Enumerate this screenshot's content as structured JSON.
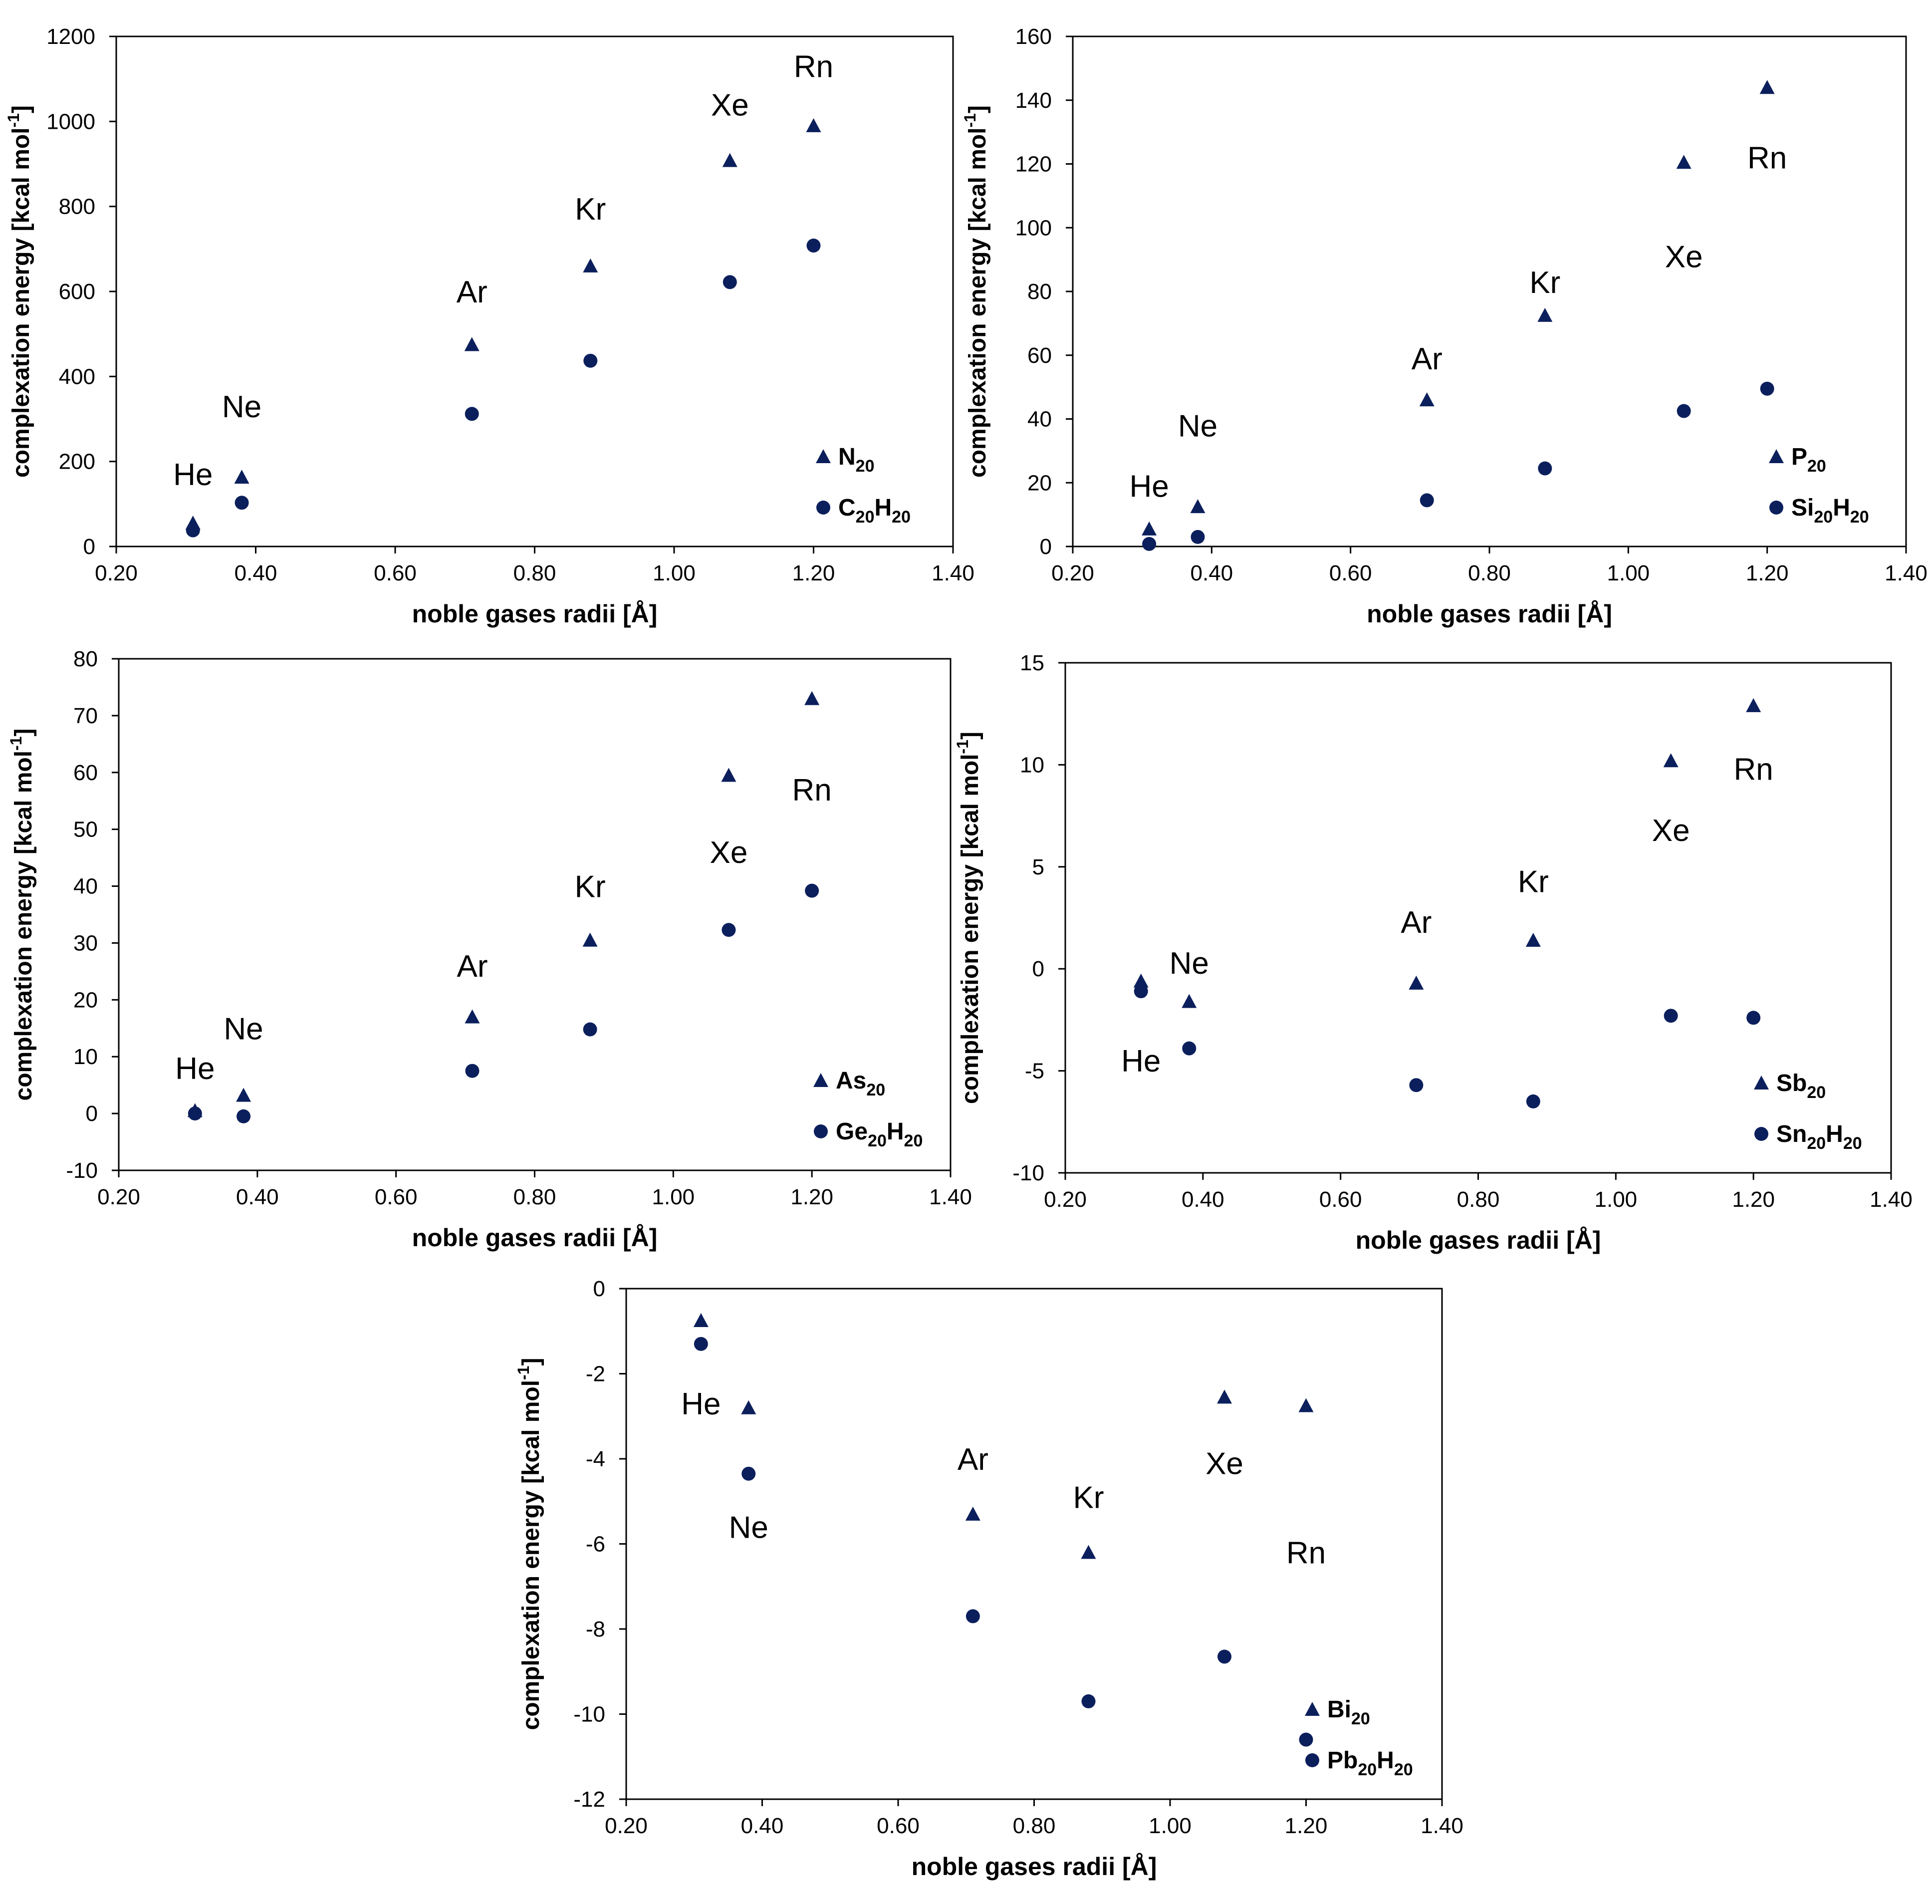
{
  "colors": {
    "marker": "#0b1f5c",
    "axis": "#000000",
    "text": "#000000"
  },
  "chart_data": [
    {
      "id": "p1",
      "type": "scatter",
      "xlabel": "noble gases radii [Å]",
      "ylabel": "complexation energy [kcal mol-1]",
      "xlim": [
        0.2,
        1.4
      ],
      "ylim": [
        0,
        1200
      ],
      "xticks": [
        "0.20",
        "0.40",
        "0.60",
        "0.80",
        "1.00",
        "1.20",
        "1.40"
      ],
      "yticks": [
        "0",
        "200",
        "400",
        "600",
        "800",
        "1000",
        "1200"
      ],
      "legend_position": "bottom-right",
      "series": [
        {
          "name": "N20",
          "legend_main": "N",
          "legend_sub": "20",
          "marker": "triangle",
          "x": [
            0.31,
            0.38,
            0.71,
            0.88,
            1.08,
            1.2
          ],
          "y": [
            55,
            163,
            475,
            660,
            908,
            990
          ]
        },
        {
          "name": "C20H20",
          "legend_main": "C",
          "legend_sub": "20",
          "legend_main2": "H",
          "legend_sub2": "20",
          "marker": "circle",
          "x": [
            0.31,
            0.38,
            0.71,
            0.88,
            1.08,
            1.2
          ],
          "y": [
            38,
            103,
            312,
            437,
            622,
            708
          ]
        }
      ],
      "annotations": [
        {
          "text": "He",
          "x": 0.31,
          "y": 170
        },
        {
          "text": "Ne",
          "x": 0.38,
          "y": 330
        },
        {
          "text": "Ar",
          "x": 0.71,
          "y": 600
        },
        {
          "text": "Kr",
          "x": 0.88,
          "y": 795
        },
        {
          "text": "Xe",
          "x": 1.08,
          "y": 1040
        },
        {
          "text": "Rn",
          "x": 1.2,
          "y": 1130
        }
      ]
    },
    {
      "id": "p2",
      "type": "scatter",
      "xlabel": "noble gases radii [Å]",
      "ylabel": "complexation energy [kcal mol-1]",
      "xlim": [
        0.2,
        1.4
      ],
      "ylim": [
        0,
        160
      ],
      "xticks": [
        "0.20",
        "0.40",
        "0.60",
        "0.80",
        "1.00",
        "1.20",
        "1.40"
      ],
      "yticks": [
        "0",
        "20",
        "40",
        "60",
        "80",
        "100",
        "120",
        "140",
        "160"
      ],
      "legend_position": "bottom-right",
      "series": [
        {
          "name": "P20",
          "legend_main": "P",
          "legend_sub": "20",
          "marker": "triangle",
          "x": [
            0.31,
            0.38,
            0.71,
            0.88,
            1.08,
            1.2
          ],
          "y": [
            5.5,
            12.5,
            46,
            72.5,
            120.5,
            144
          ]
        },
        {
          "name": "Si20H20",
          "legend_main": "Si",
          "legend_sub": "20",
          "legend_main2": "H",
          "legend_sub2": "20",
          "marker": "circle",
          "x": [
            0.31,
            0.38,
            0.71,
            0.88,
            1.08,
            1.2
          ],
          "y": [
            0.8,
            3,
            14.5,
            24.5,
            42.5,
            49.5
          ]
        }
      ],
      "annotations": [
        {
          "text": "He",
          "x": 0.31,
          "y": 19
        },
        {
          "text": "Ne",
          "x": 0.38,
          "y": 38
        },
        {
          "text": "Ar",
          "x": 0.71,
          "y": 59
        },
        {
          "text": "Kr",
          "x": 0.88,
          "y": 83
        },
        {
          "text": "Xe",
          "x": 1.08,
          "y": 91
        },
        {
          "text": "Rn",
          "x": 1.2,
          "y": 122
        }
      ]
    },
    {
      "id": "p3",
      "type": "scatter",
      "xlabel": "noble gases radii [Å]",
      "ylabel": "complexation energy [kcal mol-1]",
      "xlim": [
        0.2,
        1.4
      ],
      "ylim": [
        -10,
        80
      ],
      "xticks": [
        "0.20",
        "0.40",
        "0.60",
        "0.80",
        "1.00",
        "1.20",
        "1.40"
      ],
      "yticks": [
        "-10",
        "0",
        "10",
        "20",
        "30",
        "40",
        "50",
        "60",
        "70",
        "80"
      ],
      "legend_position": "bottom-right",
      "series": [
        {
          "name": "As20",
          "legend_main": "As",
          "legend_sub": "20",
          "marker": "triangle",
          "x": [
            0.31,
            0.38,
            0.71,
            0.88,
            1.08,
            1.2
          ],
          "y": [
            0.5,
            3.2,
            17,
            30.5,
            59.5,
            73
          ]
        },
        {
          "name": "Ge20H20",
          "legend_main": "Ge",
          "legend_sub": "20",
          "legend_main2": "H",
          "legend_sub2": "20",
          "marker": "circle",
          "x": [
            0.31,
            0.38,
            0.71,
            0.88,
            1.08,
            1.2
          ],
          "y": [
            0,
            -0.5,
            7.5,
            14.8,
            32.3,
            39.2
          ]
        }
      ],
      "annotations": [
        {
          "text": "He",
          "x": 0.31,
          "y": 8
        },
        {
          "text": "Ne",
          "x": 0.38,
          "y": 15
        },
        {
          "text": "Ar",
          "x": 0.71,
          "y": 26
        },
        {
          "text": "Kr",
          "x": 0.88,
          "y": 40
        },
        {
          "text": "Xe",
          "x": 1.08,
          "y": 46
        },
        {
          "text": "Rn",
          "x": 1.2,
          "y": 57
        }
      ]
    },
    {
      "id": "p4",
      "type": "scatter",
      "xlabel": "noble gases radii [Å]",
      "ylabel": "complexation energy [kcal mol-1]",
      "xlim": [
        0.2,
        1.4
      ],
      "ylim": [
        -10,
        15
      ],
      "xticks": [
        "0.20",
        "0.40",
        "0.60",
        "0.80",
        "1.00",
        "1.20",
        "1.40"
      ],
      "yticks": [
        "-10",
        "-5",
        "0",
        "5",
        "10",
        "15"
      ],
      "legend_position": "bottom-right",
      "series": [
        {
          "name": "Sb20",
          "legend_main": "Sb",
          "legend_sub": "20",
          "marker": "triangle",
          "x": [
            0.31,
            0.38,
            0.71,
            0.88,
            1.08,
            1.2
          ],
          "y": [
            -0.6,
            -1.6,
            -0.7,
            1.4,
            10.2,
            12.9
          ]
        },
        {
          "name": "Sn20H20",
          "legend_main": "Sn",
          "legend_sub": "20",
          "legend_main2": "H",
          "legend_sub2": "20",
          "marker": "circle",
          "x": [
            0.31,
            0.38,
            0.71,
            0.88,
            1.08,
            1.2
          ],
          "y": [
            -1.1,
            -3.9,
            -5.7,
            -6.5,
            -2.3,
            -2.4
          ]
        }
      ],
      "annotations": [
        {
          "text": "He",
          "x": 0.31,
          "y": -4.5
        },
        {
          "text": "Ne",
          "x": 0.38,
          "y": 0.3
        },
        {
          "text": "Ar",
          "x": 0.71,
          "y": 2.3
        },
        {
          "text": "Kr",
          "x": 0.88,
          "y": 4.3
        },
        {
          "text": "Xe",
          "x": 1.08,
          "y": 6.8
        },
        {
          "text": "Rn",
          "x": 1.2,
          "y": 9.8
        }
      ]
    },
    {
      "id": "p5",
      "type": "scatter",
      "xlabel": "noble gases radii [Å]",
      "ylabel": "complexation energy [kcal mol-1]",
      "xlim": [
        0.2,
        1.4
      ],
      "ylim": [
        -12,
        0
      ],
      "xticks": [
        "0.20",
        "0.40",
        "0.60",
        "0.80",
        "1.00",
        "1.20",
        "1.40"
      ],
      "yticks": [
        "-12",
        "-10",
        "-8",
        "-6",
        "-4",
        "-2",
        "0"
      ],
      "legend_position": "bottom-right",
      "series": [
        {
          "name": "Bi20",
          "legend_main": "Bi",
          "legend_sub": "20",
          "marker": "triangle",
          "x": [
            0.31,
            0.38,
            0.71,
            0.88,
            1.08,
            1.2
          ],
          "y": [
            -0.75,
            -2.8,
            -5.3,
            -6.2,
            -2.55,
            -2.75
          ]
        },
        {
          "name": "Pb20H20",
          "legend_main": "Pb",
          "legend_sub": "20",
          "legend_main2": "H",
          "legend_sub2": "20",
          "marker": "circle",
          "x": [
            0.31,
            0.38,
            0.71,
            0.88,
            1.08,
            1.2
          ],
          "y": [
            -1.3,
            -4.35,
            -7.7,
            -9.7,
            -8.65,
            -10.6
          ]
        }
      ],
      "annotations": [
        {
          "text": "He",
          "x": 0.31,
          "y": -2.7
        },
        {
          "text": "Ne",
          "x": 0.38,
          "y": -5.6
        },
        {
          "text": "Ar",
          "x": 0.71,
          "y": -4.0
        },
        {
          "text": "Kr",
          "x": 0.88,
          "y": -4.9
        },
        {
          "text": "Xe",
          "x": 1.08,
          "y": -4.1
        },
        {
          "text": "Rn",
          "x": 1.2,
          "y": -6.2
        }
      ]
    }
  ]
}
